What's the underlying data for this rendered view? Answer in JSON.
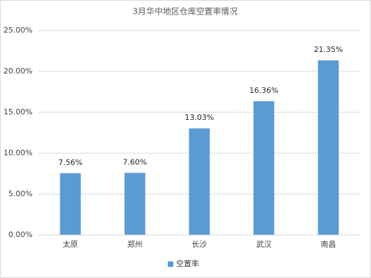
{
  "chart_data": {
    "type": "bar",
    "title": "3月华中地区仓库空置率情况",
    "categories": [
      "太原",
      "郑州",
      "长沙",
      "武汉",
      "南昌"
    ],
    "series": [
      {
        "name": "空置率",
        "color": "#5b9bd5",
        "values": [
          7.56,
          7.6,
          13.03,
          16.36,
          21.35
        ],
        "value_labels": [
          "7.56%",
          "7.60%",
          "13.03%",
          "16.36%",
          "21.35%"
        ]
      }
    ],
    "ylim": [
      0,
      25
    ],
    "yticks": [
      {
        "value": 0,
        "label": "0.00%"
      },
      {
        "value": 5,
        "label": "5.00%"
      },
      {
        "value": 10,
        "label": "10.00%"
      },
      {
        "value": 15,
        "label": "15.00%"
      },
      {
        "value": 20,
        "label": "20.00%"
      },
      {
        "value": 25,
        "label": "25.00%"
      }
    ],
    "grid": true,
    "legend": "bottom"
  }
}
